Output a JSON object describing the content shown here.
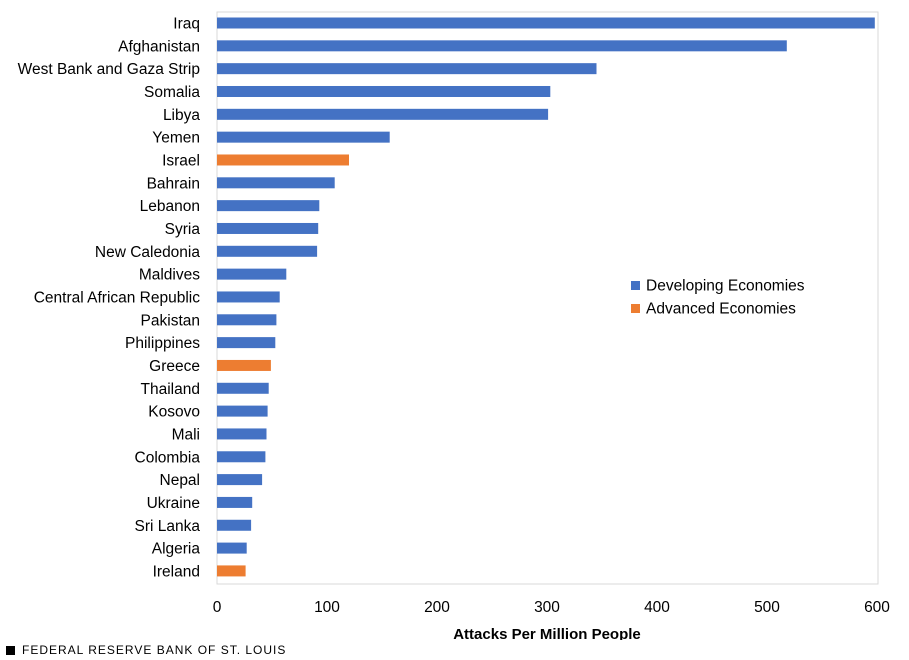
{
  "chart_data": {
    "type": "bar",
    "orientation": "horizontal",
    "categories": [
      "Iraq",
      "Afghanistan",
      "West Bank and Gaza Strip",
      "Somalia",
      "Libya",
      "Yemen",
      "Israel",
      "Bahrain",
      "Lebanon",
      "Syria",
      "New Caledonia",
      "Maldives",
      "Central African Republic",
      "Pakistan",
      "Philippines",
      "Greece",
      "Thailand",
      "Kosovo",
      "Mali",
      "Colombia",
      "Nepal",
      "Ukraine",
      "Sri Lanka",
      "Algeria",
      "Ireland"
    ],
    "values": [
      598,
      518,
      345,
      303,
      301,
      157,
      120,
      107,
      93,
      92,
      91,
      63,
      57,
      54,
      53,
      49,
      47,
      46,
      45,
      44,
      41,
      32,
      31,
      27,
      26
    ],
    "groups": [
      "Developing Economies",
      "Developing Economies",
      "Developing Economies",
      "Developing Economies",
      "Developing Economies",
      "Developing Economies",
      "Advanced Economies",
      "Developing Economies",
      "Developing Economies",
      "Developing Economies",
      "Developing Economies",
      "Developing Economies",
      "Developing Economies",
      "Developing Economies",
      "Developing Economies",
      "Advanced Economies",
      "Developing Economies",
      "Developing Economies",
      "Developing Economies",
      "Developing Economies",
      "Developing Economies",
      "Developing Economies",
      "Developing Economies",
      "Developing Economies",
      "Advanced Economies"
    ],
    "series": [
      {
        "name": "Developing Economies",
        "color": "#4472C4"
      },
      {
        "name": "Advanced Economies",
        "color": "#ED7D31"
      }
    ],
    "xlabel": "Attacks Per Million People",
    "ylabel": "",
    "xlim": [
      0,
      600
    ],
    "xticks": [
      0,
      100,
      200,
      300,
      400,
      500,
      600
    ],
    "grid": false,
    "legend_position": "right-middle"
  },
  "footer": {
    "source": "FEDERAL RESERVE BANK OF ST. LOUIS"
  }
}
